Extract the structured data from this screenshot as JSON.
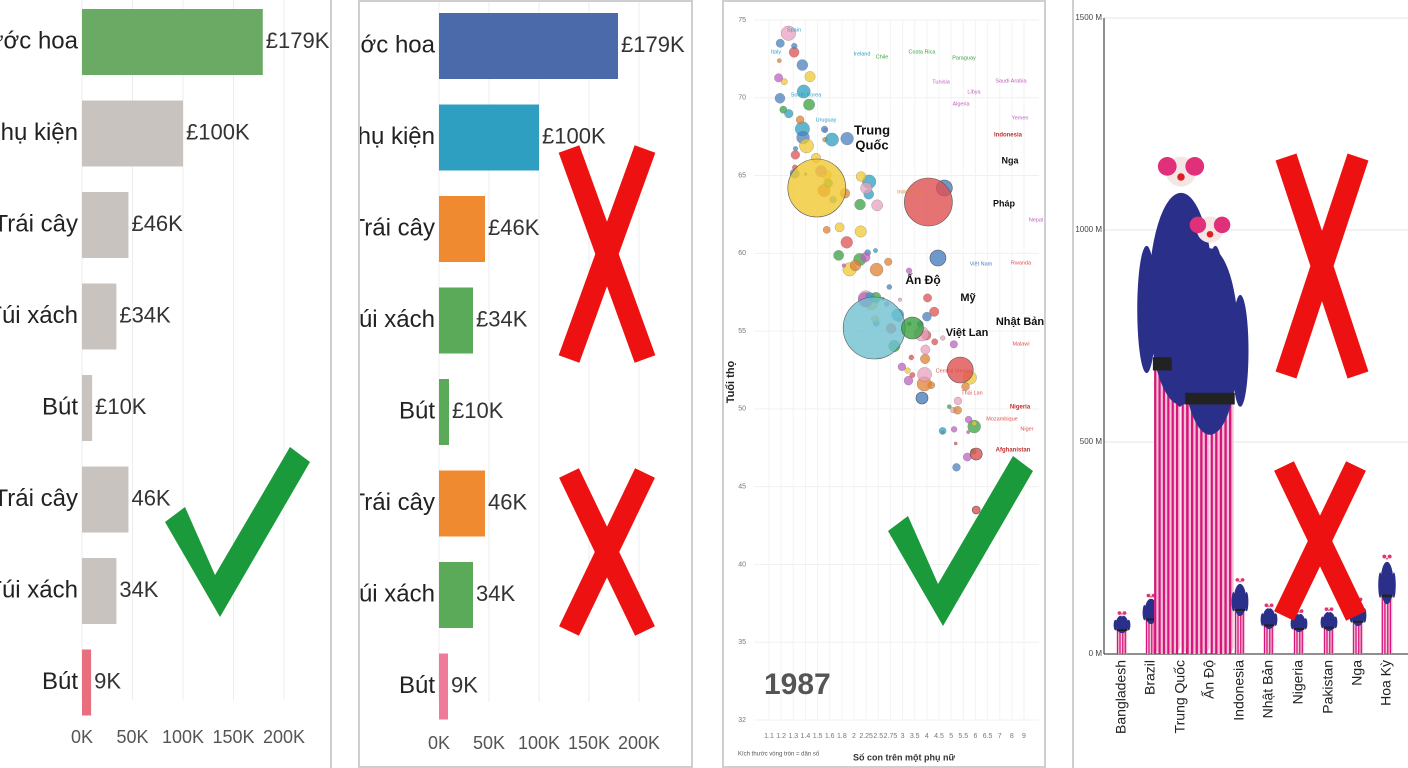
{
  "chart_data": [
    {
      "type": "bar",
      "orientation": "horizontal",
      "categories": [
        "Nước hoa",
        "Phụ kiện",
        "Trái cây",
        "Túi xách",
        "Bút",
        "Trái cây",
        "Túi xách",
        "Bút"
      ],
      "values": [
        179,
        100,
        46,
        34,
        10,
        46,
        34,
        9
      ],
      "value_labels": [
        "£179K",
        "£100K",
        "£46K",
        "£34K",
        "£10K",
        "46K",
        "34K",
        "9K"
      ],
      "bar_colors": [
        "#6aaa64",
        "#c9c3bf",
        "#c9c3bf",
        "#c9c3bf",
        "#c9c3bf",
        "#c9c3bf",
        "#c9c3bf",
        "#e8707e"
      ],
      "x_ticks": [
        "0K",
        "50K",
        "100K",
        "150K",
        "200K"
      ],
      "xlim": [
        0,
        200
      ],
      "grid": true,
      "mark": "check"
    },
    {
      "type": "bar",
      "orientation": "horizontal",
      "categories": [
        "Nước hoa",
        "Phụ kiện",
        "Trái cây",
        "Túi xách",
        "Bút",
        "Trái cây",
        "Túi xách",
        "Bút"
      ],
      "values": [
        179,
        100,
        46,
        34,
        10,
        46,
        34,
        9
      ],
      "value_labels": [
        "£179K",
        "£100K",
        "£46K",
        "£34K",
        "£10K",
        "46K",
        "34K",
        "9K"
      ],
      "bar_colors": [
        "#4a6aaa",
        "#2e9fc0",
        "#f08a30",
        "#5aaa5a",
        "#5aaa5a",
        "#f08a30",
        "#5aaa5a",
        "#f07a9a"
      ],
      "x_ticks": [
        "0K",
        "50K",
        "100K",
        "150K",
        "200K"
      ],
      "xlim": [
        0,
        200
      ],
      "grid": true,
      "marks": [
        "cross",
        "cross"
      ]
    },
    {
      "type": "scatter",
      "title": "1987",
      "ylabel": "Tuổi thọ",
      "xlabel": "Số con trên một phụ nữ",
      "size_note": "Kích thước vòng tròn = dân số",
      "x_ticks": [
        "1.1",
        "1.2",
        "1.3",
        "1.4",
        "1.5",
        "1.6",
        "1.8",
        "2",
        "2.25",
        "2.5",
        "2.75",
        "3",
        "3.5",
        "4",
        "4.5",
        "5",
        "5.5",
        "6",
        "6.5",
        "7",
        "8",
        "9"
      ],
      "y_ticks": [
        "32",
        "35",
        "40",
        "45",
        "50",
        "55",
        "60",
        "65",
        "70",
        "75"
      ],
      "xlim": [
        1,
        9
      ],
      "ylim": [
        30,
        80
      ],
      "labeled_points": [
        {
          "name": "Trung Quốc",
          "x": 2.5,
          "y": 68,
          "color": "#f0c830"
        },
        {
          "name": "Ấn Độ",
          "x": 4.3,
          "y": 58,
          "color": "#6fc0d0"
        },
        {
          "name": "Mỹ",
          "x": 5.5,
          "y": 58,
          "color": "#3aa040"
        },
        {
          "name": "Nhật Bản",
          "x": 7.0,
          "y": 55,
          "color": "#e05050"
        },
        {
          "name": "Việt Lan",
          "x": 5.8,
          "y": 53,
          "color": "#4a80c0"
        },
        {
          "name": "Pháp",
          "x": 6.3,
          "y": 63,
          "color": "#4a80c0"
        },
        {
          "name": "Nga",
          "x": 6.5,
          "y": 68,
          "color": "#4a80c0"
        },
        {
          "name": "Indonesia",
          "x": 6.0,
          "y": 67,
          "color": "#e05050"
        },
        {
          "name": "Nigeria",
          "x": 7.5,
          "y": 49,
          "color": "#e05050"
        },
        {
          "name": "Afghanistan",
          "x": 7.5,
          "y": 45,
          "color": "#e05050"
        }
      ],
      "small_labels": [
        "Spain",
        "Italy",
        "South Korea",
        "Uruguay",
        "Ireland",
        "Chile",
        "Costa Rica",
        "Paraguay",
        "Tunisia",
        "Libya",
        "Algeria",
        "Saudi Arabia",
        "Yemen",
        "Indonesia",
        "Nepal",
        "Rwanda",
        "Malawi",
        "Central Mexico",
        "Thái Lan",
        "Mozambique",
        "Niger",
        "Việt Nam"
      ],
      "mark": "check"
    },
    {
      "type": "bar",
      "orientation": "vertical",
      "categories": [
        "Bangladesh",
        "Brazil",
        "Trung Quốc",
        "Ấn Độ",
        "Indonesia",
        "Nhật Bản",
        "Nigeria",
        "Pakistan",
        "Nga",
        "Hoa Kỳ"
      ],
      "values": [
        105,
        150,
        1250,
        1100,
        190,
        125,
        110,
        115,
        140,
        250
      ],
      "unit": "M",
      "y_ticks": [
        "0 M",
        "500 M",
        "1000 M",
        "1500 M"
      ],
      "ylim": [
        0,
        1500
      ],
      "mark_style": "pictogram-clown",
      "marks": [
        "cross",
        "cross"
      ]
    }
  ],
  "colors": {
    "check": "#1a9a3a",
    "cross": "#ee1111",
    "grid": "#ececec"
  }
}
